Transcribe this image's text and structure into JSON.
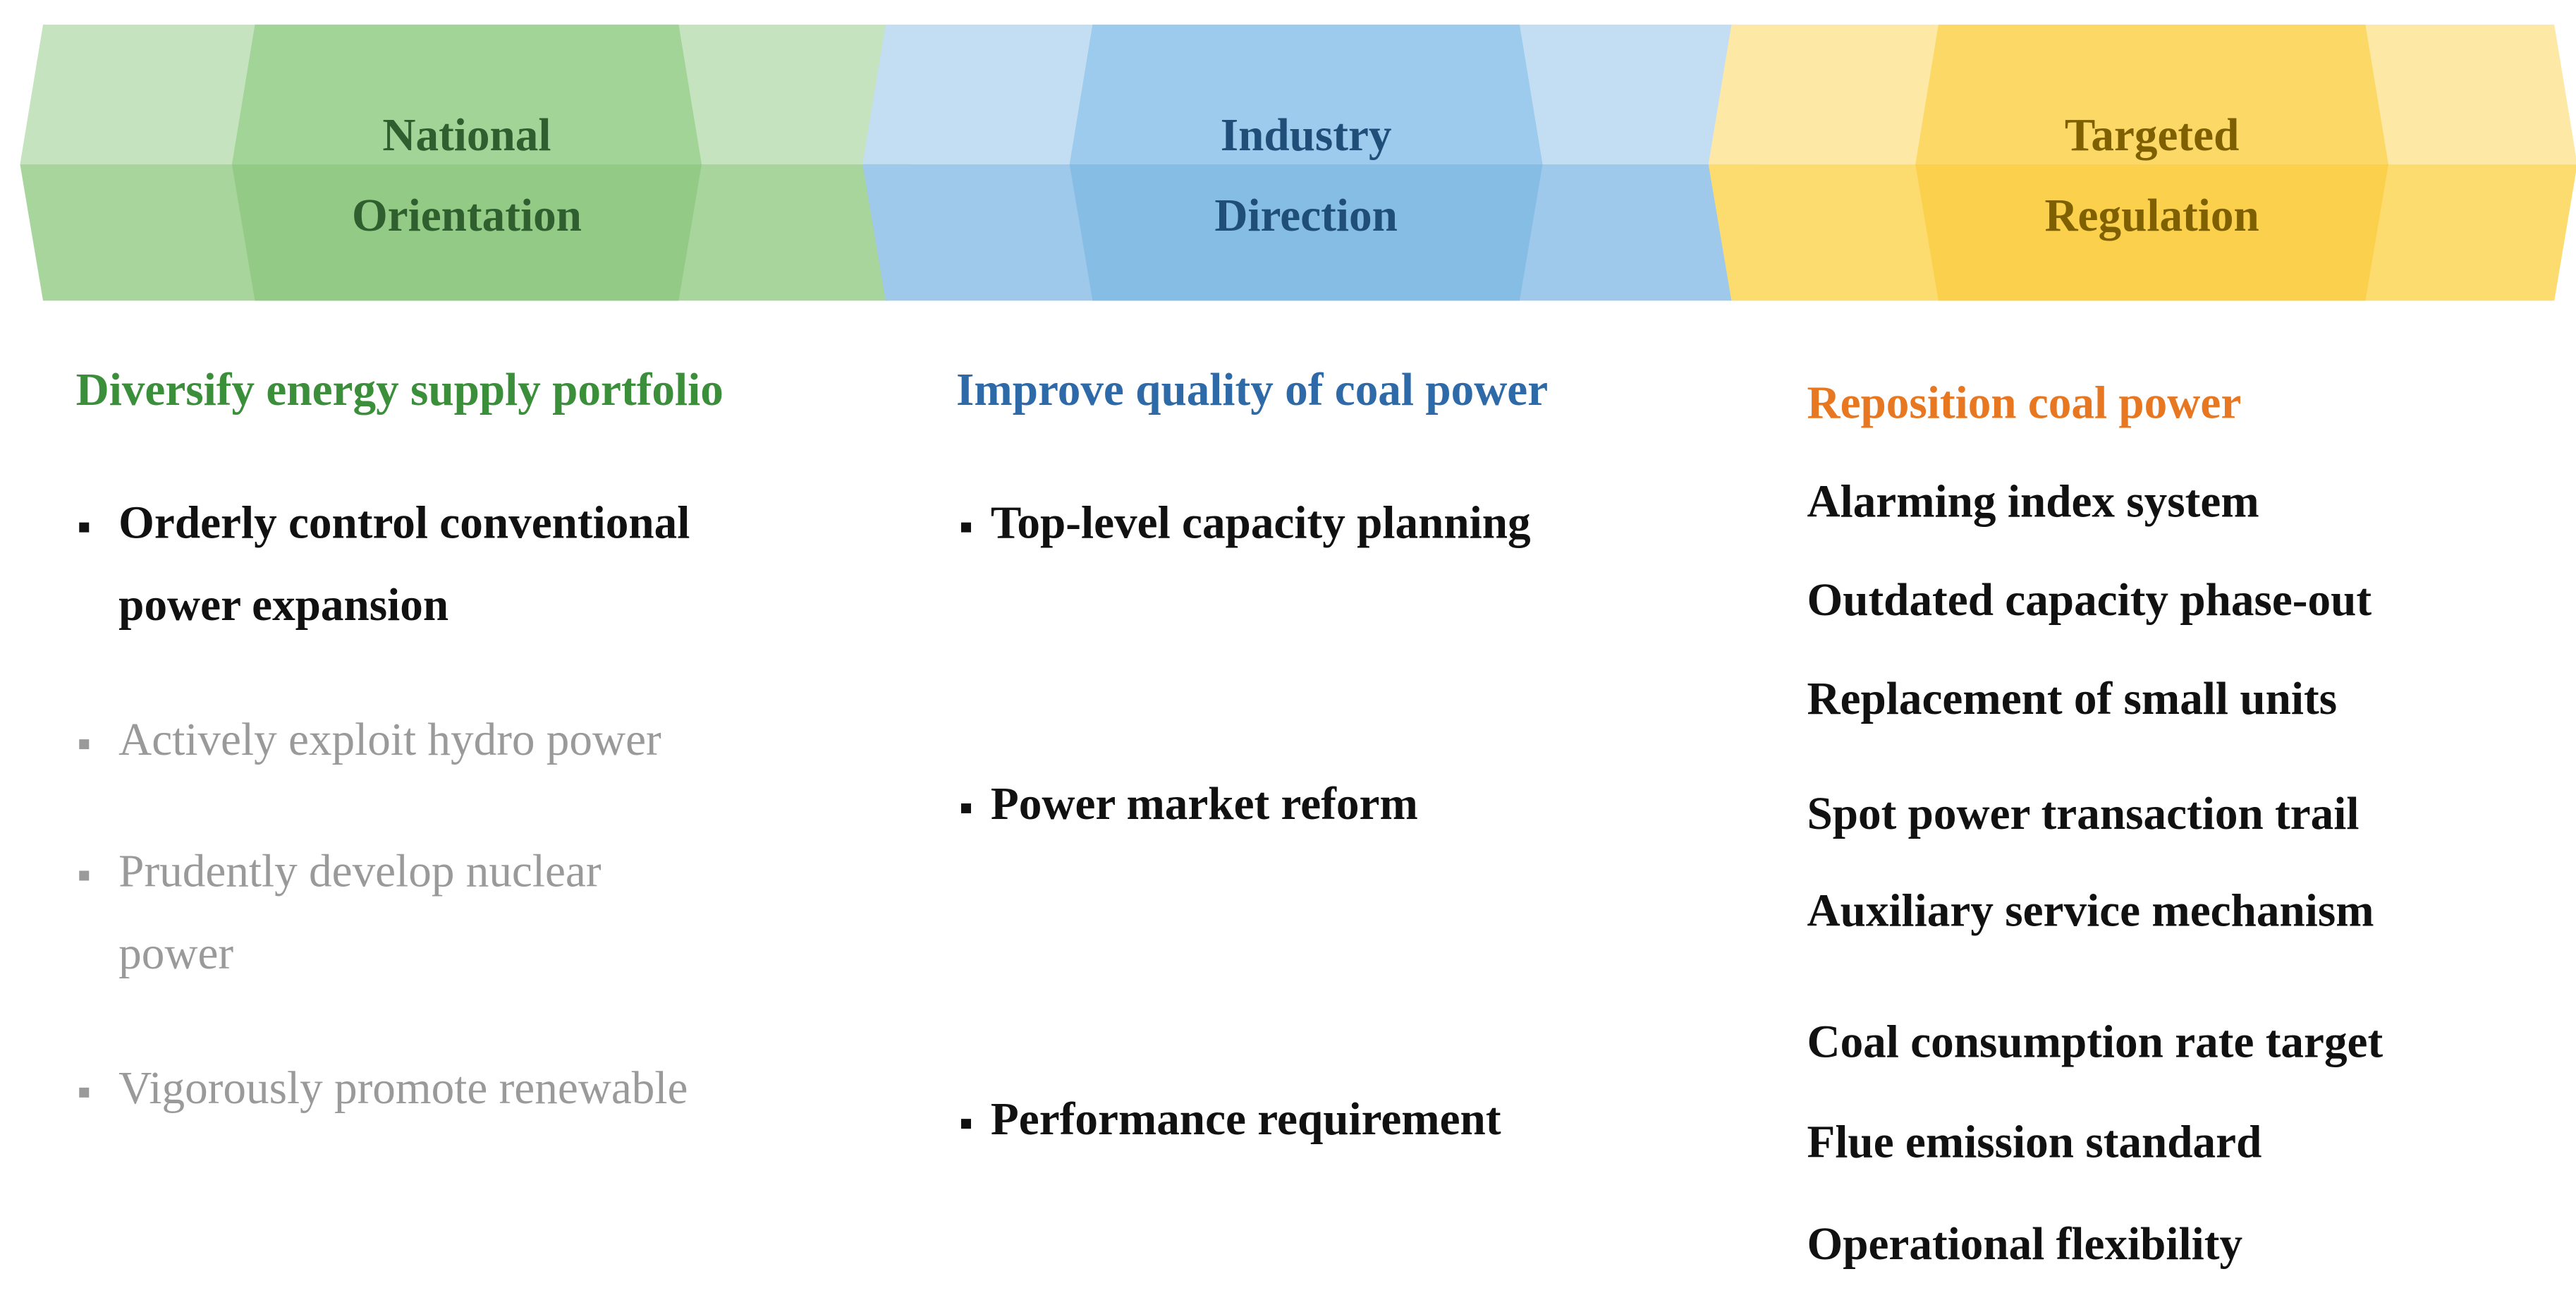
{
  "columns": [
    {
      "header": [
        "National",
        "Orientation"
      ],
      "heading": "Diversify energy supply portfolio",
      "bullets": true,
      "items": [
        {
          "lines": [
            "Orderly control conventional",
            "power expansion"
          ],
          "muted": false
        },
        {
          "lines": [
            "Actively exploit hydro power"
          ],
          "muted": true
        },
        {
          "lines": [
            "Prudently develop nuclear",
            "power"
          ],
          "muted": true
        },
        {
          "lines": [
            "Vigorously promote renewable"
          ],
          "muted": true
        }
      ]
    },
    {
      "header": [
        "Industry",
        "Direction"
      ],
      "heading": "Improve quality of coal power",
      "bullets": true,
      "items": [
        {
          "lines": [
            "Top-level capacity planning"
          ],
          "muted": false
        },
        {
          "lines": [
            "Power market reform"
          ],
          "muted": false
        },
        {
          "lines": [
            "Performance requirement"
          ],
          "muted": false
        }
      ]
    },
    {
      "header": [
        "Targeted",
        "Regulation"
      ],
      "heading": "Reposition coal power",
      "bullets": false,
      "items": [
        {
          "lines": [
            "Alarming index system"
          ],
          "muted": false
        },
        {
          "lines": [
            "Outdated capacity phase-out"
          ],
          "muted": false
        },
        {
          "lines": [
            "Replacement of small units"
          ],
          "muted": false
        },
        {
          "lines": [
            "Spot power transaction trail"
          ],
          "muted": false
        },
        {
          "lines": [
            "Auxiliary service mechanism"
          ],
          "muted": false
        },
        {
          "lines": [
            "Coal consumption rate target"
          ],
          "muted": false
        },
        {
          "lines": [
            "Flue emission standard"
          ],
          "muted": false
        },
        {
          "lines": [
            "Operational flexibility"
          ],
          "muted": false
        }
      ]
    }
  ]
}
